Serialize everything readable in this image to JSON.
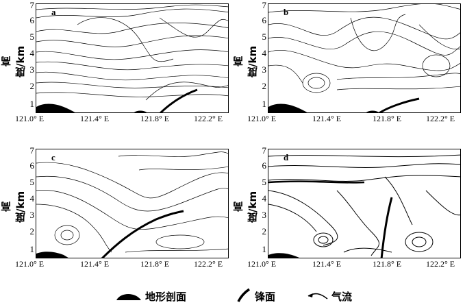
{
  "y_axis_label": "高度/km",
  "y_ticks": [
    "1",
    "2",
    "3",
    "4",
    "5",
    "6",
    "7"
  ],
  "x_ticks": [
    "121.0° E",
    "121.4° E",
    "121.8° E",
    "122.2° E"
  ],
  "panels": [
    {
      "id": "a",
      "label": "a"
    },
    {
      "id": "b",
      "label": "b"
    },
    {
      "id": "c",
      "label": "c"
    },
    {
      "id": "d",
      "label": "d"
    }
  ],
  "legend": {
    "terrain": "地形剖面",
    "front": "锋面",
    "airflow": "气流"
  }
}
